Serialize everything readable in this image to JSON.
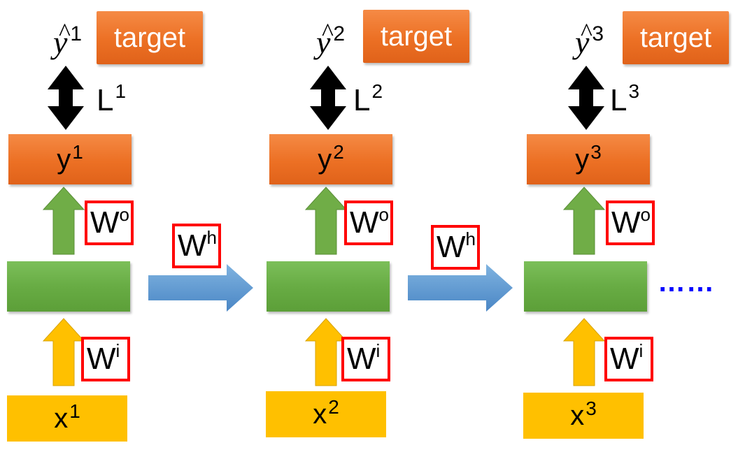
{
  "colors": {
    "orange": "#ed7d31",
    "green": "#70ad47",
    "yellow": "#ffc000",
    "blue_arrow": "#5b9bd5",
    "red_border": "#ff0000",
    "dots": "#0000ff"
  },
  "steps": [
    {
      "y_hat": "y",
      "y_hat_index": "1",
      "target_label": "target",
      "loss": "L",
      "loss_index": "1",
      "output": "y",
      "output_index": "1",
      "output_weight": "W",
      "output_weight_sup": "o",
      "input_weight": "W",
      "input_weight_sup": "i",
      "input": "x",
      "input_index": "1"
    },
    {
      "y_hat": "y",
      "y_hat_index": "2",
      "target_label": "target",
      "loss": "L",
      "loss_index": "2",
      "output": "y",
      "output_index": "2",
      "output_weight": "W",
      "output_weight_sup": "o",
      "input_weight": "W",
      "input_weight_sup": "i",
      "input": "x",
      "input_index": "2"
    },
    {
      "y_hat": "y",
      "y_hat_index": "3",
      "target_label": "target",
      "loss": "L",
      "loss_index": "3",
      "output": "y",
      "output_index": "3",
      "output_weight": "W",
      "output_weight_sup": "o",
      "input_weight": "W",
      "input_weight_sup": "i",
      "input": "x",
      "input_index": "3"
    }
  ],
  "hidden_weights": [
    {
      "label": "W",
      "sup": "h"
    },
    {
      "label": "W",
      "sup": "h"
    }
  ],
  "continuation": "……"
}
